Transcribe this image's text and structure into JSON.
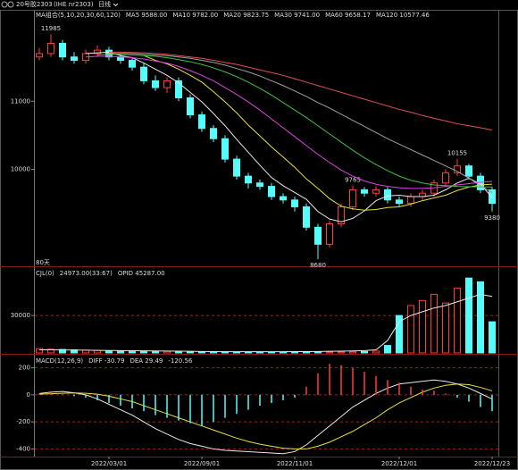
{
  "header": {
    "symbol": "20号胶2303",
    "code": "(IHE nr2303)",
    "period": "日线"
  },
  "chart_data": [
    {
      "type": "candlestick",
      "title": "MA组合(5,10,20,30,60,120)",
      "note": "80天",
      "up_color": "#ff3c3c",
      "down_color": "#54fcfc",
      "open": [
        11650,
        11700,
        11850,
        11650,
        11600,
        11700,
        11750,
        11650,
        11600,
        11500,
        11300,
        11200,
        11300,
        11050,
        10800,
        10600,
        10450,
        10150,
        9900,
        9800,
        9750,
        9600,
        9550,
        9450,
        9150,
        8900,
        9200,
        9450,
        9700,
        9650,
        9700,
        9550,
        9500,
        9600,
        9650,
        9800,
        9950,
        10050,
        9900,
        9700
      ],
      "high": [
        11780,
        11985,
        11900,
        11720,
        11760,
        11820,
        11800,
        11700,
        11650,
        11560,
        11380,
        11350,
        11350,
        11100,
        10850,
        10650,
        10500,
        10200,
        9950,
        9850,
        9800,
        9650,
        9600,
        9500,
        9200,
        9250,
        9500,
        9765,
        9740,
        9750,
        9740,
        9600,
        9650,
        9700,
        9850,
        10000,
        10155,
        10080,
        9950,
        9740
      ],
      "low": [
        11600,
        11650,
        11600,
        11550,
        11550,
        11650,
        11600,
        11550,
        11450,
        11250,
        11150,
        11120,
        11000,
        10750,
        10550,
        10400,
        10100,
        9850,
        9720,
        9700,
        9550,
        9500,
        9380,
        9100,
        8680,
        8850,
        9150,
        9400,
        9600,
        9600,
        9500,
        9450,
        9450,
        9550,
        9600,
        9750,
        9900,
        9850,
        9650,
        9380
      ],
      "close": [
        11700,
        11850,
        11650,
        11600,
        11700,
        11750,
        11650,
        11600,
        11500,
        11300,
        11200,
        11300,
        11050,
        10800,
        10600,
        10450,
        10150,
        9900,
        9800,
        9750,
        9600,
        9550,
        9450,
        9150,
        8900,
        9200,
        9450,
        9700,
        9650,
        9700,
        9550,
        9500,
        9600,
        9650,
        9800,
        9950,
        10050,
        9900,
        9700,
        9500
      ],
      "high_value_labels": [
        null,
        "11985",
        null,
        null,
        null,
        null,
        null,
        null,
        null,
        null,
        null,
        null,
        null,
        null,
        null,
        null,
        null,
        null,
        null,
        null,
        null,
        null,
        null,
        null,
        null,
        null,
        null,
        "9765",
        null,
        null,
        null,
        null,
        null,
        null,
        null,
        null,
        "10155",
        null,
        null,
        null
      ],
      "low_value_labels": [
        null,
        null,
        null,
        null,
        null,
        null,
        null,
        null,
        null,
        null,
        null,
        null,
        null,
        null,
        null,
        null,
        null,
        null,
        null,
        null,
        null,
        null,
        null,
        null,
        "8680",
        null,
        null,
        null,
        null,
        null,
        null,
        null,
        null,
        null,
        null,
        null,
        null,
        null,
        null,
        "9380"
      ],
      "series": [
        {
          "name": "MA5 9588.00",
          "color": "#e8e8e8",
          "values": [
            null,
            null,
            null,
            null,
            11700,
            11710,
            11720,
            11670,
            11640,
            11560,
            11470,
            11380,
            11270,
            11130,
            10990,
            10820,
            10640,
            10440,
            10250,
            10060,
            9880,
            9760,
            9660,
            9560,
            9380,
            9270,
            9230,
            9280,
            9390,
            9540,
            9610,
            9620,
            9600,
            9600,
            9620,
            9700,
            9800,
            9870,
            9780,
            9588
          ]
        },
        {
          "name": "MA10 9782.00",
          "color": "#e8e040",
          "values": [
            null,
            null,
            null,
            null,
            null,
            null,
            null,
            null,
            null,
            11670,
            11600,
            11550,
            11470,
            11380,
            11280,
            11140,
            10990,
            10830,
            10650,
            10490,
            10330,
            10180,
            10030,
            9860,
            9720,
            9570,
            9460,
            9420,
            9400,
            9410,
            9440,
            9450,
            9490,
            9540,
            9580,
            9620,
            9690,
            9740,
            9770,
            9782
          ]
        },
        {
          "name": "MA20 9823.75",
          "color": "#e040e0",
          "values": [
            null,
            null,
            null,
            null,
            11650,
            11660,
            11660,
            11650,
            11640,
            11620,
            11590,
            11560,
            11510,
            11450,
            11380,
            11300,
            11200,
            11100,
            10990,
            10870,
            10740,
            10610,
            10480,
            10350,
            10220,
            10100,
            9990,
            9900,
            9830,
            9780,
            9750,
            9730,
            9720,
            9720,
            9730,
            9750,
            9770,
            9790,
            9810,
            9823.75
          ]
        },
        {
          "name": "MA30 9741.00",
          "color": "#40c040",
          "values": [
            null,
            null,
            null,
            null,
            null,
            11680,
            11690,
            11690,
            11680,
            11670,
            11660,
            11640,
            11610,
            11580,
            11540,
            11490,
            11430,
            11360,
            11280,
            11190,
            11090,
            10980,
            10870,
            10760,
            10640,
            10520,
            10400,
            10280,
            10170,
            10070,
            9980,
            9900,
            9840,
            9800,
            9770,
            9760,
            9750,
            9745,
            9742,
            9741
          ]
        },
        {
          "name": "MA60 9658.17",
          "color": "#a0a0a0",
          "values": [
            null,
            null,
            null,
            null,
            null,
            null,
            11700,
            11700,
            11700,
            11690,
            11680,
            11670,
            11650,
            11630,
            11600,
            11570,
            11530,
            11480,
            11430,
            11370,
            11300,
            11230,
            11150,
            11070,
            10980,
            10900,
            10810,
            10720,
            10630,
            10540,
            10450,
            10370,
            10290,
            10210,
            10130,
            10050,
            9970,
            9870,
            9760,
            9658.17
          ]
        },
        {
          "name": "MA120 10577.46",
          "color": "#e05050",
          "values": [
            null,
            null,
            null,
            null,
            null,
            null,
            11720,
            11720,
            11715,
            11710,
            11700,
            11690,
            11670,
            11650,
            11630,
            11600,
            11570,
            11540,
            11500,
            11460,
            11420,
            11380,
            11330,
            11280,
            11230,
            11180,
            11130,
            11080,
            11030,
            10980,
            10930,
            10880,
            10840,
            10790,
            10750,
            10710,
            10670,
            10640,
            10610,
            10577.46
          ]
        }
      ],
      "ylim": [
        8590,
        12250
      ],
      "yticks": [
        11000,
        10000
      ],
      "grid": false
    },
    {
      "type": "bar",
      "title": "CJL(0)",
      "ylim": [
        0,
        68000
      ],
      "yticks": [
        30000
      ],
      "grid": true,
      "series": [
        {
          "name": "24973.00(33:67)",
          "type": "bar",
          "color": "#e8e8e8",
          "values": [
            3500,
            3000,
            2800,
            2500,
            2200,
            2000,
            1800,
            1600,
            1500,
            1400,
            1300,
            1200,
            1100,
            1000,
            1000,
            900,
            900,
            800,
            800,
            800,
            700,
            700,
            700,
            700,
            800,
            800,
            900,
            1000,
            1200,
            1500,
            6000,
            30000,
            38000,
            42000,
            47000,
            40000,
            52000,
            60000,
            57000,
            24973
          ]
        },
        {
          "name": "OPID 45287.00",
          "type": "line",
          "color": "#e8e8e8",
          "values": [
            2500,
            2500,
            2400,
            2300,
            2200,
            2100,
            2000,
            1900,
            1800,
            1700,
            1600,
            1500,
            1400,
            1300,
            1200,
            1100,
            1000,
            1000,
            1000,
            1000,
            1000,
            1000,
            1100,
            1100,
            1200,
            1300,
            1400,
            1600,
            1900,
            2500,
            10000,
            25000,
            30000,
            33000,
            36000,
            38000,
            41000,
            44000,
            47000,
            45287
          ]
        }
      ]
    },
    {
      "type": "bar",
      "title": "MACD(12,26,9)",
      "ylim": [
        -450,
        290
      ],
      "yticks": [
        200,
        0,
        -200,
        -400
      ],
      "grid": true,
      "categories": [
        null,
        null,
        null,
        null,
        null,
        null,
        "2022/03/01",
        null,
        null,
        null,
        null,
        null,
        null,
        null,
        "2022/09/01",
        null,
        null,
        null,
        null,
        null,
        null,
        null,
        "2022/11/01",
        null,
        null,
        null,
        null,
        null,
        null,
        null,
        null,
        "2022/12/01",
        null,
        null,
        null,
        null,
        null,
        null,
        null,
        "2022/12/23"
      ],
      "series": [
        {
          "name": "DIFF -30.79",
          "type": "line",
          "color": "#e8e8e8",
          "values": [
            10,
            20,
            25,
            15,
            0,
            -30,
            -70,
            -110,
            -150,
            -200,
            -250,
            -290,
            -330,
            -360,
            -380,
            -400,
            -410,
            -415,
            -420,
            -425,
            -430,
            -435,
            -420,
            -370,
            -300,
            -230,
            -160,
            -90,
            -40,
            10,
            50,
            80,
            90,
            100,
            110,
            100,
            80,
            50,
            10,
            -30.79
          ]
        },
        {
          "name": "DEA 29.49",
          "type": "line",
          "color": "#e8e040",
          "values": [
            5,
            8,
            12,
            14,
            12,
            5,
            -10,
            -30,
            -50,
            -80,
            -110,
            -140,
            -170,
            -200,
            -230,
            -260,
            -290,
            -320,
            -345,
            -365,
            -380,
            -395,
            -400,
            -400,
            -380,
            -350,
            -310,
            -270,
            -220,
            -170,
            -110,
            -60,
            -20,
            20,
            50,
            70,
            80,
            75,
            55,
            29.49
          ]
        },
        {
          "name": "-120.56",
          "type": "bar",
          "color": "#e040e0",
          "up_color": "#ff3c3c",
          "down_color": "#54fcfc",
          "values": [
            10,
            15,
            5,
            -10,
            -20,
            -40,
            -60,
            -80,
            -100,
            -120,
            -150,
            -170,
            -190,
            -210,
            -230,
            -200,
            -170,
            -140,
            -110,
            -80,
            -60,
            -40,
            -20,
            60,
            160,
            230,
            220,
            200,
            170,
            140,
            110,
            90,
            60,
            40,
            30,
            10,
            -20,
            -50,
            -90,
            -120.56
          ]
        }
      ]
    }
  ]
}
